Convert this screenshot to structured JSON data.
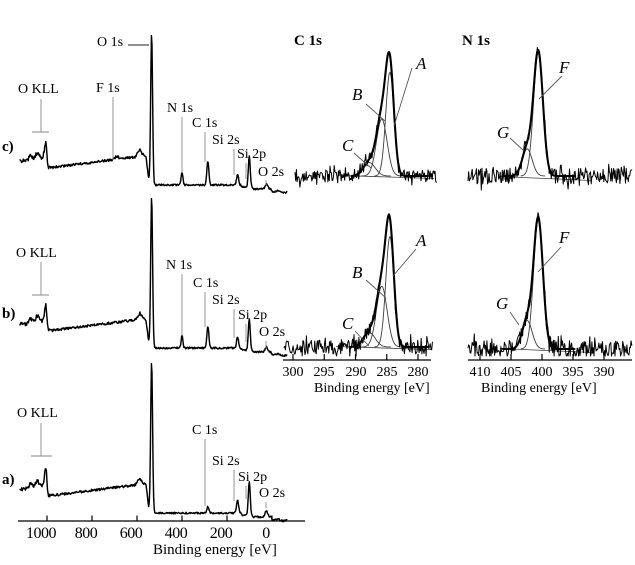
{
  "colors": {
    "foreground": "#000000",
    "leader_gray": "#8a8a8a",
    "component_gray": "#3c3c3c"
  },
  "chart_data": {
    "survey": {
      "type": "line",
      "xlabel": "Binding energy [eV]",
      "x_ticks": [
        1000,
        800,
        600,
        400,
        200,
        0
      ],
      "x_range_eV": [
        1115,
        -60
      ],
      "ylabel": "",
      "grid": false,
      "panels": [
        {
          "label": "c)",
          "peaks": [
            {
              "label": "O KLL",
              "energy_eV": 1005,
              "rel_height": 0.13
            },
            {
              "label": "F 1s",
              "energy_eV": 689,
              "rel_height": 0.02
            },
            {
              "label": "O 1s",
              "energy_eV": 535,
              "rel_height": 1.0
            },
            {
              "label": "N 1s",
              "energy_eV": 400,
              "rel_height": 0.084
            },
            {
              "label": "C 1s",
              "energy_eV": 285,
              "rel_height": 0.155
            },
            {
              "label": "Si 2s",
              "energy_eV": 153,
              "rel_height": 0.071
            },
            {
              "label": "Si 2p",
              "energy_eV": 101,
              "rel_height": 0.2
            },
            {
              "label": "O 2s",
              "energy_eV": 25,
              "rel_height": 0.032
            }
          ]
        },
        {
          "label": "b)",
          "peaks": [
            {
              "label": "O KLL",
              "energy_eV": 1005,
              "rel_height": 0.13
            },
            {
              "label": "O 1s",
              "energy_eV": 535,
              "rel_height": 1.0,
              "show_label": false
            },
            {
              "label": "N 1s",
              "energy_eV": 400,
              "rel_height": 0.077
            },
            {
              "label": "C 1s",
              "energy_eV": 285,
              "rel_height": 0.14
            },
            {
              "label": "Si 2s",
              "energy_eV": 153,
              "rel_height": 0.071
            },
            {
              "label": "Si 2p",
              "energy_eV": 101,
              "rel_height": 0.2
            },
            {
              "label": "O 2s",
              "energy_eV": 25,
              "rel_height": 0.032
            }
          ]
        },
        {
          "label": "a)",
          "peaks": [
            {
              "label": "O KLL",
              "energy_eV": 1005,
              "rel_height": 0.145
            },
            {
              "label": "O 1s",
              "energy_eV": 535,
              "rel_height": 1.0,
              "show_label": false
            },
            {
              "label": "C 1s",
              "energy_eV": 285,
              "rel_height": 0.04
            },
            {
              "label": "Si 2s",
              "energy_eV": 153,
              "rel_height": 0.084
            },
            {
              "label": "Si 2p",
              "energy_eV": 101,
              "rel_height": 0.215
            },
            {
              "label": "O 2s",
              "energy_eV": 25,
              "rel_height": 0.04
            }
          ]
        }
      ]
    },
    "fits": [
      {
        "region": "C 1s",
        "title": "C 1s",
        "row": "top",
        "components": [
          {
            "label": "A",
            "energy_eV": 284.5,
            "sigma_eV": 0.65,
            "rel_height": 1.0
          },
          {
            "label": "B",
            "energy_eV": 285.8,
            "sigma_eV": 0.85,
            "rel_height": 0.55
          },
          {
            "label": "C",
            "energy_eV": 287.8,
            "sigma_eV": 0.95,
            "rel_height": 0.13
          }
        ]
      },
      {
        "region": "N 1s",
        "title": "N 1s",
        "row": "top",
        "components": [
          {
            "label": "F",
            "energy_eV": 400.6,
            "sigma_eV": 0.75,
            "rel_height": 1.0
          },
          {
            "label": "G",
            "energy_eV": 402.4,
            "sigma_eV": 0.8,
            "rel_height": 0.22
          }
        ]
      },
      {
        "region": "C 1s",
        "row": "bottom",
        "xlabel": "Binding energy [eV]",
        "x_ticks": [
          300,
          295,
          290,
          285,
          280
        ],
        "components": [
          {
            "label": "A",
            "energy_eV": 284.5,
            "sigma_eV": 0.65,
            "rel_height": 1.0
          },
          {
            "label": "B",
            "energy_eV": 285.8,
            "sigma_eV": 0.85,
            "rel_height": 0.55
          },
          {
            "label": "C",
            "energy_eV": 287.8,
            "sigma_eV": 0.95,
            "rel_height": 0.13
          }
        ]
      },
      {
        "region": "N 1s",
        "row": "bottom",
        "xlabel": "Binding energy [eV]",
        "x_ticks": [
          410,
          405,
          400,
          395,
          390
        ],
        "components": [
          {
            "label": "F",
            "energy_eV": 400.6,
            "sigma_eV": 0.75,
            "rel_height": 1.0
          },
          {
            "label": "G",
            "energy_eV": 402.4,
            "sigma_eV": 0.8,
            "rel_height": 0.22
          }
        ]
      }
    ]
  }
}
